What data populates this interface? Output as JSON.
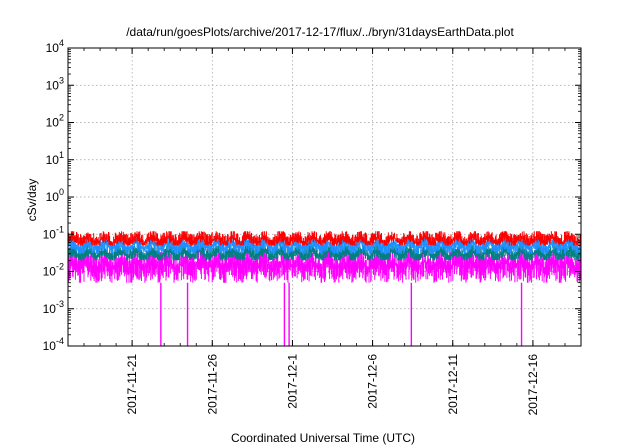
{
  "chart_data": {
    "type": "line",
    "title": "/data/run/goesPlots/archive/2017-12-17/flux/../bryn/31daysEarthData.plot",
    "xlabel": "Coordinated Universal Time (UTC)",
    "ylabel": "cSv/day",
    "yscale": "log",
    "ylim": [
      0.0001,
      10000
    ],
    "xlim": [
      "2017-11-17",
      "2017-12-19"
    ],
    "grid": true,
    "legend": "none",
    "y_ticks": [
      {
        "base": "10",
        "exp": "-4"
      },
      {
        "base": "10",
        "exp": "-3"
      },
      {
        "base": "10",
        "exp": "-2"
      },
      {
        "base": "10",
        "exp": "-1"
      },
      {
        "base": "10",
        "exp": "0"
      },
      {
        "base": "10",
        "exp": "1"
      },
      {
        "base": "10",
        "exp": "2"
      },
      {
        "base": "10",
        "exp": "3"
      },
      {
        "base": "10",
        "exp": "4"
      }
    ],
    "x_ticks": [
      {
        "date": "2017-11-21",
        "label": "2017-11-21"
      },
      {
        "date": "2017-11-26",
        "label": "2017-11-26"
      },
      {
        "date": "2017-12-01",
        "label": "2017-12-1"
      },
      {
        "date": "2017-12-06",
        "label": "2017-12-6"
      },
      {
        "date": "2017-12-11",
        "label": "2017-12-11"
      },
      {
        "date": "2017-12-16",
        "label": "2017-12-16"
      }
    ],
    "series": [
      {
        "color": "#ff00ff",
        "typical": 0.015,
        "low": 0.005,
        "high": 0.04
      },
      {
        "color": "#008080",
        "typical": 0.03,
        "low": 0.02,
        "high": 0.05
      },
      {
        "color": "#1e90ff",
        "typical": 0.05,
        "low": 0.03,
        "high": 0.08
      },
      {
        "color": "#ff0000",
        "typical": 0.07,
        "low": 0.05,
        "high": 0.12
      }
    ],
    "drops": [
      "2017-11-22T19:00",
      "2017-11-24T11:00",
      "2017-11-30T12:00",
      "2017-11-30T19:00",
      "2017-12-08T10:00",
      "2017-12-15T07:00"
    ]
  }
}
